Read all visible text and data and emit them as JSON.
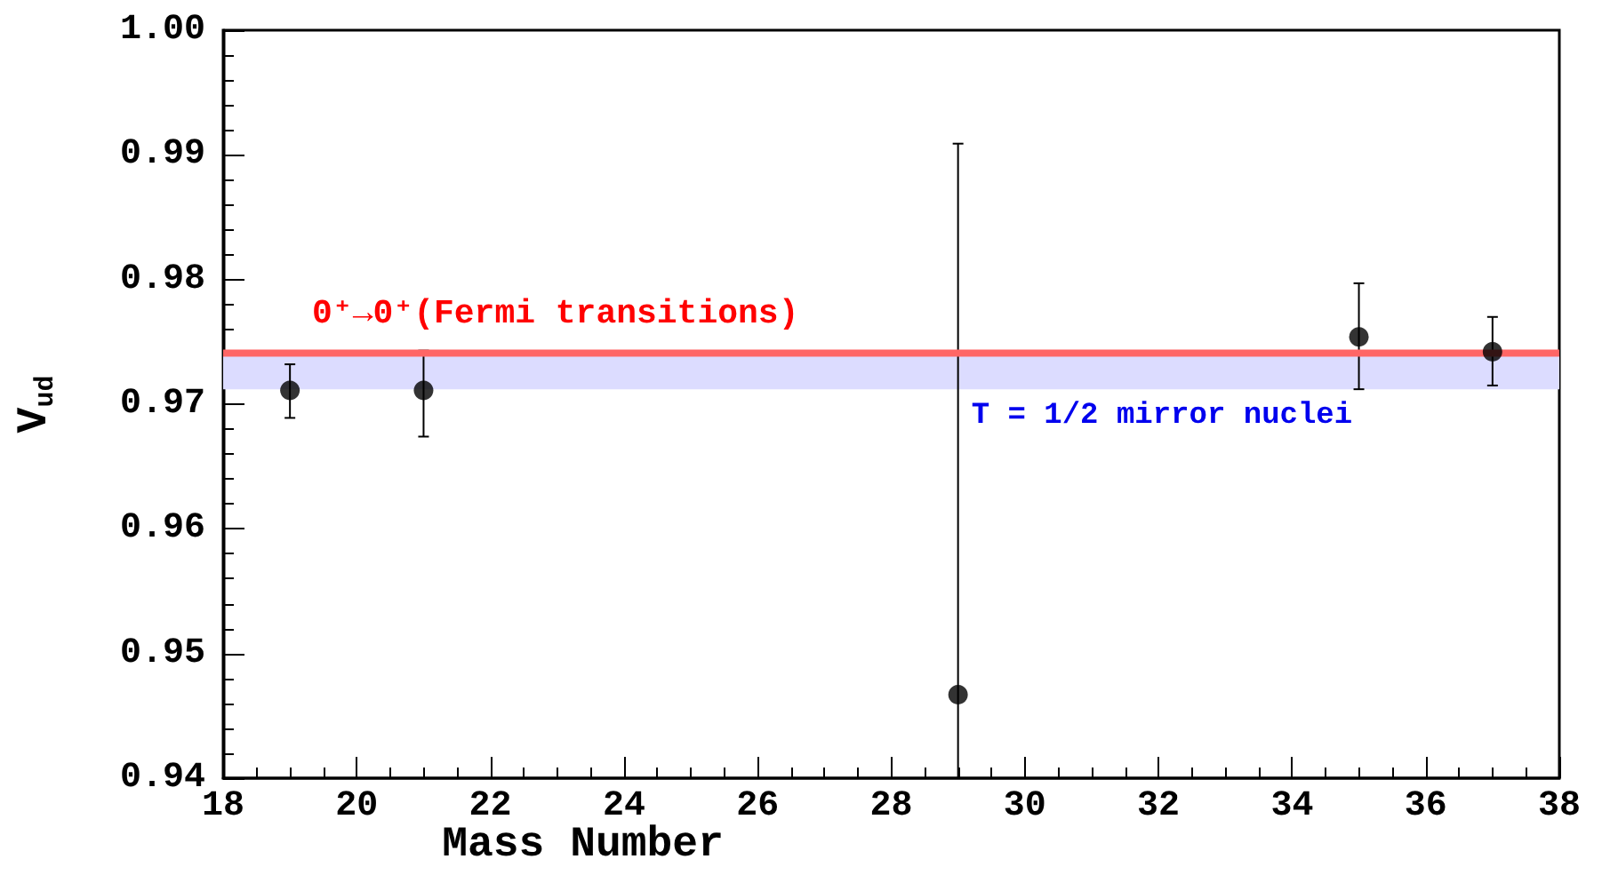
{
  "chart_data": {
    "type": "scatter",
    "xlabel": "Mass Number",
    "ylabel": "V$_{ud}$",
    "x": [
      19,
      21,
      29,
      35,
      37
    ],
    "series": [
      {
        "color": "#000000",
        "values": [
          0.9711,
          0.9711,
          0.9467,
          0.9754,
          0.9742
        ],
        "errors": [
          [
            0.9689,
            0.9732
          ],
          [
            0.9674,
            0.9743
          ],
          [
            0.94,
            0.9909
          ],
          [
            0.9712,
            0.9797
          ],
          [
            0.9715,
            0.977
          ]
        ]
      }
    ],
    "marker": "circle",
    "xlim": [
      18,
      38
    ],
    "xticks": [
      18,
      20,
      22,
      24,
      26,
      28,
      30,
      32,
      34,
      36,
      38
    ],
    "ylim": [
      0.94,
      1.0
    ],
    "yticks": [
      0.94,
      0.95,
      0.96,
      0.97,
      0.98,
      0.99,
      {
        "value": 1.0,
        "label": "1.00"
      }
    ],
    "ref_lines": [
      {
        "axis": "y",
        "value": 0.9741,
        "label": "0⁺→0⁺(Fermi transitions)",
        "color": "#ff6666"
      }
    ],
    "bands": [
      {
        "axis": "y",
        "from": 0.9712,
        "to": 0.9741,
        "label": "T = 1/2 mirror nuclei",
        "color": "#dcdcff"
      }
    ],
    "grid": false
  }
}
